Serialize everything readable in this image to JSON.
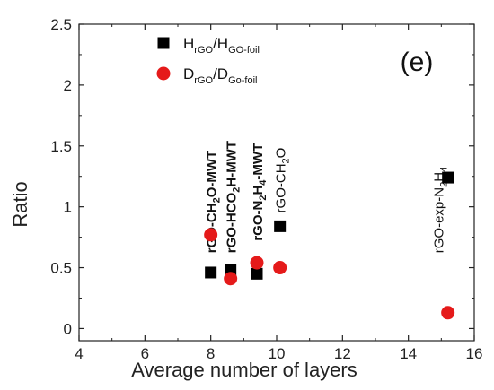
{
  "chart_data": {
    "type": "scatter",
    "xlabel": "Average number of layers",
    "ylabel": "Ratio",
    "xlim": [
      4,
      16
    ],
    "ylim": [
      -0.1,
      2.5
    ],
    "xticks": [
      4,
      6,
      8,
      10,
      12,
      14,
      16
    ],
    "yticks": [
      0,
      0.5,
      1,
      1.5,
      2,
      2.5
    ],
    "panel_label": "(e)",
    "legend_position": "top-center",
    "series": [
      {
        "name": "HrGO/HGO-foil",
        "legend": {
          "main1": "H",
          "sub1": "rGO",
          "main2": "/H",
          "sub2": "GO-foil"
        },
        "marker": "square",
        "color": "#000000",
        "x": [
          8.0,
          8.6,
          9.4,
          10.1,
          15.2
        ],
        "y": [
          0.46,
          0.48,
          0.45,
          0.84,
          1.24
        ]
      },
      {
        "name": "DrGO/DGo-foil",
        "legend": {
          "main1": "D",
          "sub1": "rGO",
          "main2": "/D",
          "sub2": "Go-foil"
        },
        "marker": "circle",
        "color": "#e51a1a",
        "x": [
          8.0,
          8.6,
          9.4,
          10.1,
          15.2
        ],
        "y": [
          0.77,
          0.41,
          0.54,
          0.5,
          0.13
        ]
      }
    ],
    "annotations": [
      {
        "name": "anno-ch2o-mwt",
        "bold": true,
        "x": 8.0,
        "y": 0.62,
        "parts": [
          {
            "t": "rGO-CH"
          },
          {
            "t": "2",
            "sub": true
          },
          {
            "t": "O-MWT"
          }
        ]
      },
      {
        "name": "anno-hco2h-mwt",
        "bold": true,
        "x": 8.6,
        "y": 0.62,
        "parts": [
          {
            "t": "rGO-HCO"
          },
          {
            "t": "2",
            "sub": true
          },
          {
            "t": "H-MWT"
          }
        ]
      },
      {
        "name": "anno-n2h4-mwt",
        "bold": true,
        "x": 9.4,
        "y": 0.72,
        "parts": [
          {
            "t": "rGO-N"
          },
          {
            "t": "2",
            "sub": true
          },
          {
            "t": "H"
          },
          {
            "t": "4",
            "sub": true
          },
          {
            "t": "-MWT"
          }
        ]
      },
      {
        "name": "anno-ch2o",
        "bold": false,
        "x": 10.1,
        "y": 0.95,
        "parts": [
          {
            "t": "rGO-CH"
          },
          {
            "t": "2",
            "sub": true
          },
          {
            "t": "O"
          }
        ]
      },
      {
        "name": "anno-exp-n2h4",
        "bold": false,
        "x": 14.9,
        "y": 0.62,
        "parts": [
          {
            "t": "rGO-exp-N"
          },
          {
            "t": "2",
            "sub": true
          },
          {
            "t": "H"
          },
          {
            "t": "4",
            "sub": true
          }
        ]
      }
    ]
  }
}
